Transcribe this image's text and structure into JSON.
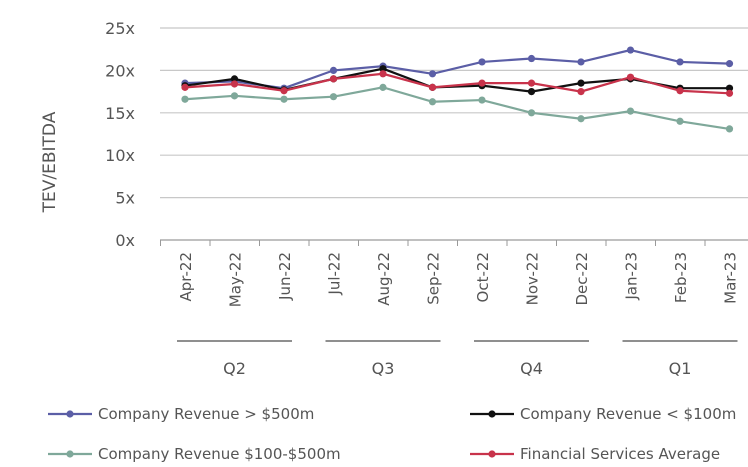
{
  "chart_data": {
    "type": "line",
    "title": "",
    "ylabel": "TEV/EBITDA",
    "ylim": [
      0,
      25
    ],
    "yticks": [
      "0x",
      "5x",
      "10x",
      "15x",
      "20x",
      "25x"
    ],
    "yticks_values": [
      0,
      5,
      10,
      15,
      20,
      25
    ],
    "grid": "horizontal",
    "categories": [
      "Apr-22",
      "May-22",
      "Jun-22",
      "Jul-22",
      "Aug-22",
      "Sep-22",
      "Oct-22",
      "Nov-22",
      "Dec-22",
      "Jan-23",
      "Feb-23",
      "Mar-23"
    ],
    "quarters": [
      {
        "label": "Q2",
        "start": 0,
        "end": 2
      },
      {
        "label": "Q3",
        "start": 3,
        "end": 5
      },
      {
        "label": "Q4",
        "start": 6,
        "end": 8
      },
      {
        "label": "Q1",
        "start": 9,
        "end": 11
      }
    ],
    "series": [
      {
        "name": "Company Revenue > $500m",
        "color": "#5b5ea6",
        "values": [
          18.5,
          18.7,
          17.9,
          20.0,
          20.5,
          19.6,
          21.0,
          21.4,
          21.0,
          22.4,
          21.0,
          20.8
        ]
      },
      {
        "name": "Company Revenue < $100m",
        "color": "#111111",
        "values": [
          18.2,
          19.0,
          17.7,
          19.0,
          20.2,
          18.0,
          18.2,
          17.5,
          18.5,
          19.0,
          17.9,
          17.9
        ]
      },
      {
        "name": "Company Revenue  $100-$500m",
        "color": "#7fa89a",
        "values": [
          16.6,
          17.0,
          16.6,
          16.9,
          18.0,
          16.3,
          16.5,
          15.0,
          14.3,
          15.2,
          14.0,
          13.1
        ]
      },
      {
        "name": "Financial Services Average",
        "color": "#c8334b",
        "values": [
          18.0,
          18.4,
          17.6,
          19.0,
          19.6,
          18.0,
          18.5,
          18.5,
          17.5,
          19.2,
          17.6,
          17.3
        ]
      }
    ],
    "legend_position": "bottom"
  }
}
